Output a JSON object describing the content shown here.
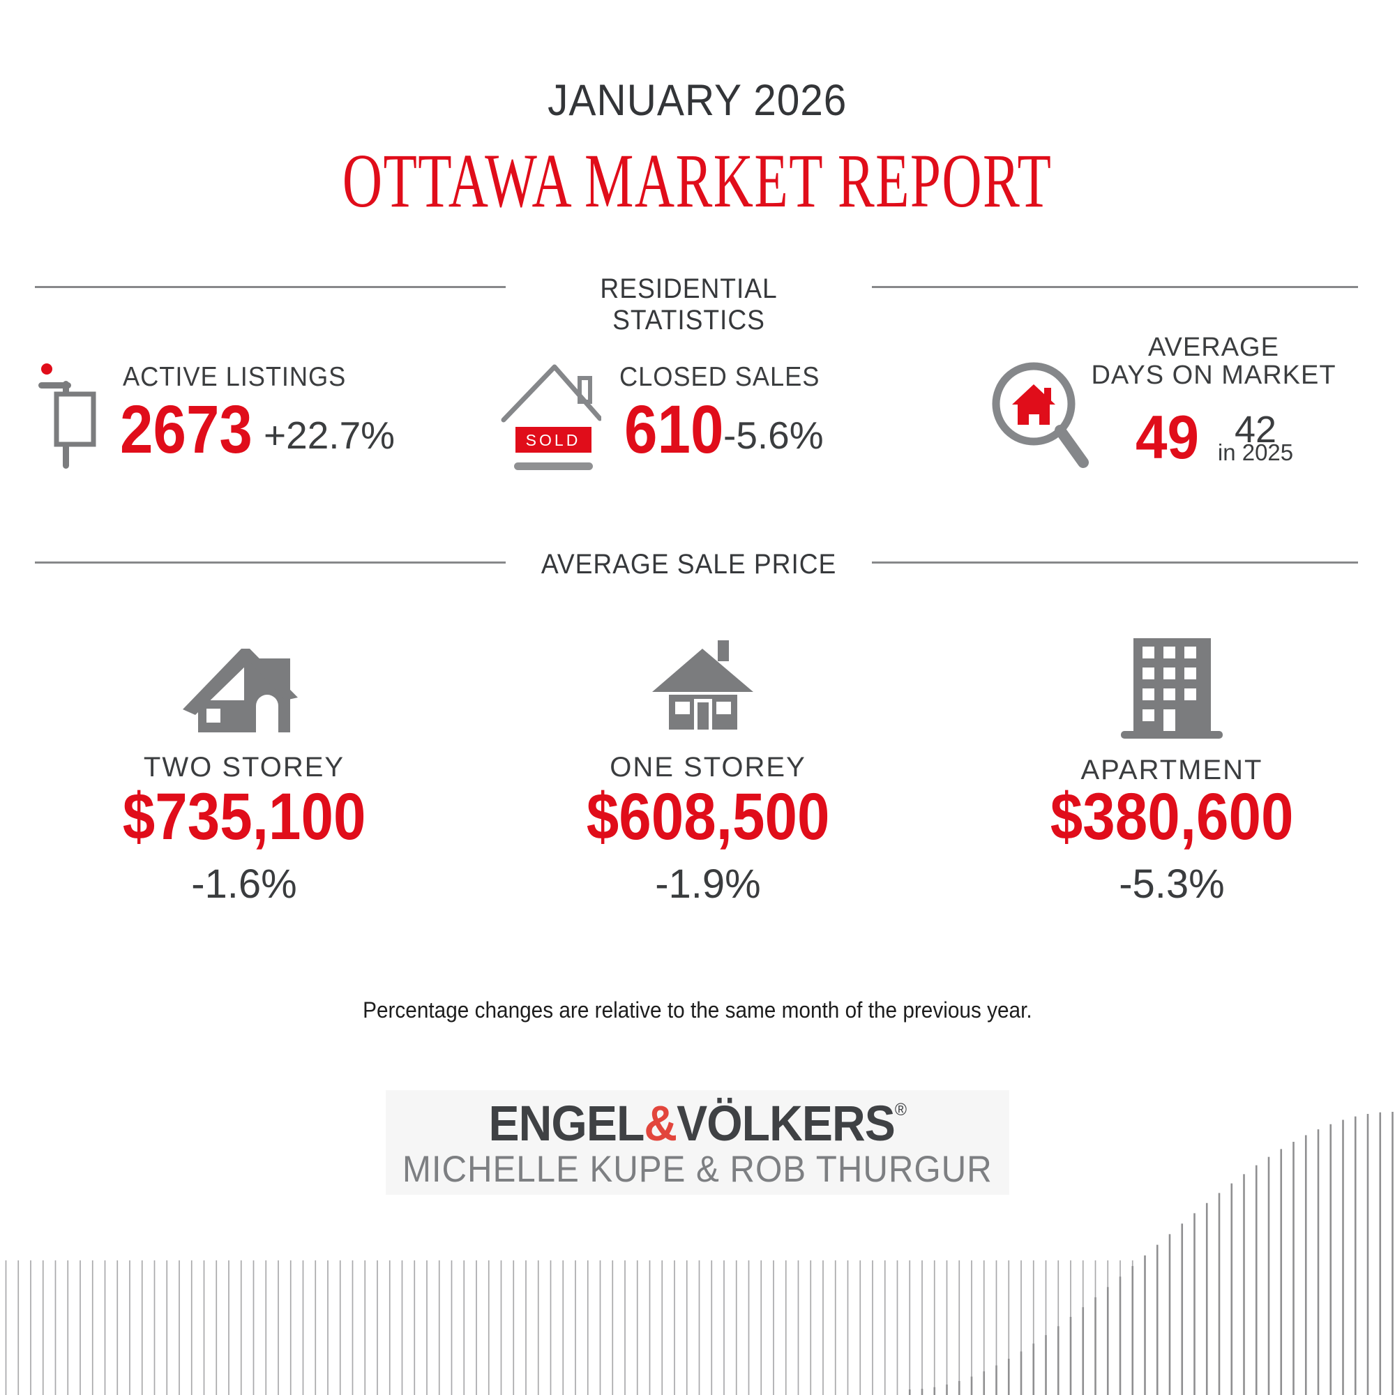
{
  "header": {
    "month": "JANUARY 2026",
    "title": "OTTAWA MARKET REPORT"
  },
  "sections": {
    "residential": "RESIDENTIAL STATISTICS",
    "average_sale_price": "AVERAGE SALE PRICE"
  },
  "stats": [
    {
      "label": "ACTIVE LISTINGS",
      "value": "2673",
      "change": "+22.7%",
      "icon": "for-sale-sign"
    },
    {
      "label": "CLOSED SALES",
      "value": "610",
      "change": "-5.6%",
      "icon": "sold-house",
      "icon_text": "SOLD"
    },
    {
      "label_line1": "AVERAGE",
      "label_line2": "DAYS ON MARKET",
      "value": "49",
      "previous_value": "42",
      "previous_label": "in 2025",
      "icon": "magnifier-house"
    }
  ],
  "prices": [
    {
      "label": "TWO STOREY",
      "value": "$735,100",
      "change": "-1.6%",
      "icon": "two-storey-house"
    },
    {
      "label": "ONE STOREY",
      "value": "$608,500",
      "change": "-1.9%",
      "icon": "one-storey-house"
    },
    {
      "label": "APARTMENT",
      "value": "$380,600",
      "change": "-5.3%",
      "icon": "apartment-building"
    }
  ],
  "footnote": "Percentage changes are relative to the same month of the previous year.",
  "logo": {
    "brand_left": "ENGEL",
    "brand_amp": "&",
    "brand_right": "VÖLKERS",
    "reg_mark": "®",
    "tagline": "MICHELLE KUPE & ROB THURGUR"
  },
  "colors": {
    "accent_red": "#e00d1a",
    "amp_red": "#e2453c",
    "dark_text": "#35373a",
    "icon_gray": "#7b7c7e",
    "rule_gray": "#87888a",
    "logo_bg": "#f6f6f6",
    "deco_line_light": "#a9a9ab",
    "deco_line_dark": "#8f8f91"
  }
}
